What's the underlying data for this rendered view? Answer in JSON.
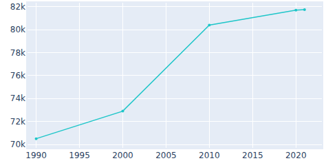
{
  "chart_data": {
    "type": "line",
    "x": [
      1990,
      2000,
      2010,
      2020,
      2021
    ],
    "values": [
      70500,
      72900,
      80400,
      81700,
      81750
    ],
    "color": "#1fc6c9",
    "marker": "circle",
    "line_style": "solid",
    "xlim": [
      1989,
      2023
    ],
    "xticks": [
      1990,
      1995,
      2000,
      2005,
      2010,
      2015,
      2020
    ],
    "ylim": [
      69700,
      82350
    ],
    "yticks": [
      {
        "value": 70000,
        "label": "70k"
      },
      {
        "value": 72000,
        "label": "72k"
      },
      {
        "value": 74000,
        "label": "74k"
      },
      {
        "value": 76000,
        "label": "76k"
      },
      {
        "value": 78000,
        "label": "78k"
      },
      {
        "value": 80000,
        "label": "80k"
      },
      {
        "value": 82000,
        "label": "82k"
      }
    ],
    "grid": true
  }
}
